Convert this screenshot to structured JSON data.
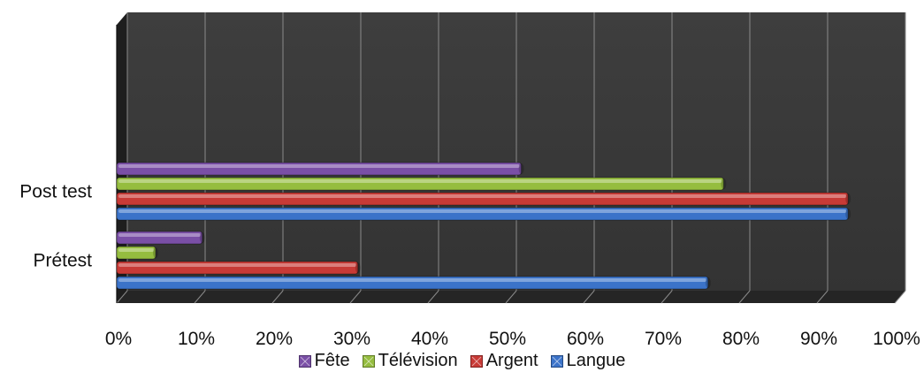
{
  "chart_data": {
    "type": "bar",
    "orientation": "horizontal",
    "style": "3d",
    "categories": [
      "Prétest",
      "Post test"
    ],
    "series": [
      {
        "name": "Langue",
        "color": "#3b73c9",
        "values": [
          0.76,
          0.94
        ]
      },
      {
        "name": "Argent",
        "color": "#c83a36",
        "values": [
          0.31,
          0.94
        ]
      },
      {
        "name": "Télévision",
        "color": "#95bd3f",
        "values": [
          0.05,
          0.78
        ]
      },
      {
        "name": "Fête",
        "color": "#7a4fa6",
        "values": [
          0.11,
          0.52
        ]
      }
    ],
    "xlim": [
      0,
      1
    ],
    "x_ticks": [
      "0%",
      "10%",
      "20%",
      "30%",
      "40%",
      "50%",
      "60%",
      "70%",
      "80%",
      "90%",
      "100%"
    ],
    "grid": true,
    "background_color": "#3a3a3a",
    "legend_position": "bottom",
    "legend_order": [
      "Fête",
      "Télévision",
      "Argent",
      "Langue"
    ]
  }
}
